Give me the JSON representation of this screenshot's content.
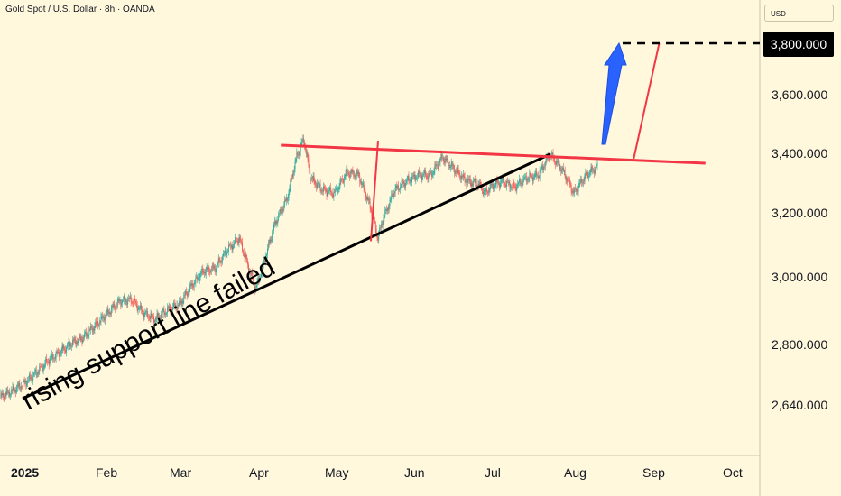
{
  "header": {
    "title": "Gold Spot / U.S. Dollar · 8h · OANDA",
    "currency": "USD"
  },
  "annotation": {
    "text": "rising support line failed"
  },
  "chart_data": {
    "type": "line",
    "title": "Gold Spot / U.S. Dollar · 8h · OANDA",
    "xlabel": "",
    "ylabel": "",
    "x_ticks": [
      "2025",
      "Feb",
      "Mar",
      "Apr",
      "May",
      "Jun",
      "Jul",
      "Aug",
      "Sep",
      "Oct"
    ],
    "y_ticks": [
      "3,600.000",
      "3,400.000",
      "3,200.000",
      "3,000.000",
      "2,800.000",
      "2,640.000"
    ],
    "target_label": "3,800.000",
    "series": [
      {
        "values": [
          [
            0,
            2620
          ],
          [
            5,
            2640
          ],
          [
            10,
            2665
          ],
          [
            15,
            2700
          ],
          [
            20,
            2740
          ],
          [
            25,
            2770
          ],
          [
            30,
            2800
          ],
          [
            35,
            2820
          ],
          [
            40,
            2860
          ],
          [
            45,
            2900
          ],
          [
            50,
            2940
          ],
          [
            55,
            2945
          ],
          [
            60,
            2900
          ],
          [
            65,
            2880
          ],
          [
            70,
            2910
          ],
          [
            75,
            2930
          ],
          [
            80,
            2990
          ],
          [
            85,
            3040
          ],
          [
            90,
            3050
          ],
          [
            95,
            3110
          ],
          [
            100,
            3150
          ],
          [
            104,
            3050
          ],
          [
            107,
            2980
          ],
          [
            110,
            3060
          ],
          [
            115,
            3200
          ],
          [
            120,
            3280
          ],
          [
            124,
            3420
          ],
          [
            127,
            3480
          ],
          [
            130,
            3350
          ],
          [
            135,
            3310
          ],
          [
            140,
            3300
          ],
          [
            145,
            3370
          ],
          [
            150,
            3360
          ],
          [
            155,
            3250
          ],
          [
            158,
            3150
          ],
          [
            160,
            3210
          ],
          [
            165,
            3310
          ],
          [
            170,
            3340
          ],
          [
            175,
            3360
          ],
          [
            180,
            3360
          ],
          [
            185,
            3420
          ],
          [
            190,
            3380
          ],
          [
            195,
            3340
          ],
          [
            200,
            3330
          ],
          [
            203,
            3300
          ],
          [
            205,
            3320
          ],
          [
            210,
            3340
          ],
          [
            215,
            3320
          ],
          [
            220,
            3350
          ],
          [
            225,
            3360
          ],
          [
            230,
            3430
          ],
          [
            235,
            3380
          ],
          [
            240,
            3300
          ],
          [
            245,
            3360
          ],
          [
            250,
            3390
          ]
        ]
      }
    ],
    "support_line": [
      [
        0,
        2630
      ],
      [
        230,
        3430
      ]
    ],
    "resistance_line": [
      [
        125,
        3460
      ],
      [
        295,
        3400
      ]
    ],
    "projection": [
      [
        265,
        3415
      ],
      [
        270,
        3800
      ]
    ],
    "target_level": 3800,
    "ylim": [
      2560,
      3880
    ]
  }
}
